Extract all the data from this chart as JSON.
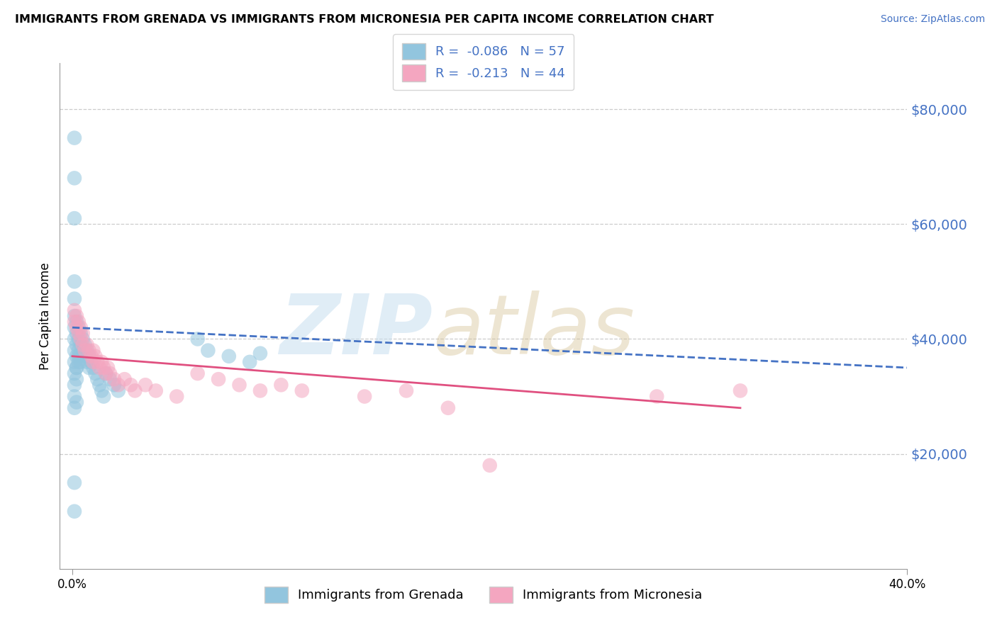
{
  "title": "IMMIGRANTS FROM GRENADA VS IMMIGRANTS FROM MICRONESIA PER CAPITA INCOME CORRELATION CHART",
  "source": "Source: ZipAtlas.com",
  "ylabel": "Per Capita Income",
  "yticks": [
    20000,
    40000,
    60000,
    80000
  ],
  "ytick_labels": [
    "$20,000",
    "$40,000",
    "$60,000",
    "$80,000"
  ],
  "legend1_label": "R =  -0.086   N = 57",
  "legend2_label": "R =  -0.213   N = 44",
  "bottom_legend1": "Immigrants from Grenada",
  "bottom_legend2": "Immigrants from Micronesia",
  "blue_color": "#92c5de",
  "pink_color": "#f4a6c0",
  "blue_line_color": "#4472c4",
  "pink_line_color": "#e05080",
  "xmin": 0.0,
  "xmax": 0.4,
  "ymin": 0,
  "ymax": 88000,
  "blue_trend_x": [
    0.0,
    0.4
  ],
  "blue_trend_y": [
    42000,
    35000
  ],
  "pink_trend_x": [
    0.0,
    0.32
  ],
  "pink_trend_y": [
    37000,
    28000
  ],
  "blue_x": [
    0.001,
    0.001,
    0.001,
    0.001,
    0.001,
    0.001,
    0.001,
    0.001,
    0.001,
    0.001,
    0.002,
    0.002,
    0.002,
    0.002,
    0.002,
    0.002,
    0.003,
    0.003,
    0.003,
    0.003,
    0.004,
    0.004,
    0.004,
    0.005,
    0.005,
    0.006,
    0.006,
    0.007,
    0.007,
    0.008,
    0.008,
    0.009,
    0.01,
    0.011,
    0.012,
    0.013,
    0.014,
    0.015,
    0.016,
    0.018,
    0.02,
    0.022,
    0.001,
    0.001,
    0.002,
    0.003,
    0.004,
    0.001,
    0.001,
    0.002,
    0.06,
    0.065,
    0.075,
    0.085,
    0.09,
    0.001,
    0.001
  ],
  "blue_y": [
    75000,
    68000,
    61000,
    50000,
    47000,
    44000,
    42000,
    40000,
    38000,
    36000,
    43000,
    41000,
    39000,
    37000,
    35000,
    33000,
    42000,
    40000,
    38000,
    36000,
    41000,
    39000,
    37000,
    40000,
    38000,
    39000,
    37000,
    38000,
    36000,
    37000,
    35000,
    36000,
    35000,
    34000,
    33000,
    32000,
    31000,
    30000,
    34000,
    33000,
    32000,
    31000,
    34000,
    32000,
    35000,
    37000,
    36000,
    30000,
    28000,
    29000,
    40000,
    38000,
    37000,
    36000,
    37500,
    15000,
    10000
  ],
  "pink_x": [
    0.001,
    0.001,
    0.002,
    0.002,
    0.003,
    0.003,
    0.004,
    0.004,
    0.005,
    0.005,
    0.006,
    0.007,
    0.008,
    0.009,
    0.01,
    0.01,
    0.011,
    0.012,
    0.013,
    0.014,
    0.015,
    0.016,
    0.017,
    0.018,
    0.02,
    0.022,
    0.025,
    0.028,
    0.03,
    0.035,
    0.04,
    0.05,
    0.06,
    0.07,
    0.08,
    0.09,
    0.1,
    0.11,
    0.14,
    0.16,
    0.18,
    0.2,
    0.28,
    0.32
  ],
  "pink_y": [
    45000,
    43000,
    44000,
    42000,
    43000,
    41000,
    42000,
    40000,
    41000,
    39000,
    38000,
    39000,
    38000,
    37000,
    38000,
    36000,
    37000,
    36000,
    35000,
    36000,
    35000,
    34000,
    35000,
    34000,
    33000,
    32000,
    33000,
    32000,
    31000,
    32000,
    31000,
    30000,
    34000,
    33000,
    32000,
    31000,
    32000,
    31000,
    30000,
    31000,
    28000,
    18000,
    30000,
    31000
  ]
}
